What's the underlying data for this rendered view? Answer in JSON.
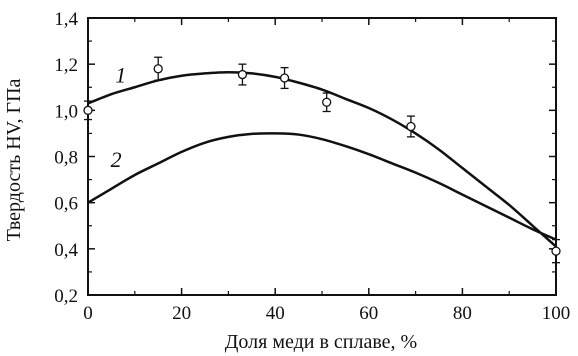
{
  "chart_data": {
    "type": "scatter",
    "xlabel": "Доля меди в сплаве, %",
    "ylabel": "Твердость HV, ГПа",
    "xlim": [
      0,
      100
    ],
    "ylim": [
      0.2,
      1.4
    ],
    "x_ticks": [
      0,
      20,
      40,
      60,
      80,
      100
    ],
    "x_tick_labels": [
      "0",
      "20",
      "40",
      "60",
      "80",
      "100"
    ],
    "y_ticks": [
      0.2,
      0.4,
      0.6,
      0.8,
      1.0,
      1.2,
      1.4
    ],
    "y_tick_labels": [
      "0,2",
      "0,4",
      "0,6",
      "0,8",
      "1,0",
      "1,2",
      "1,4"
    ],
    "grid": false,
    "colors": {
      "ink": "#111111",
      "background": "#ffffff"
    },
    "series": [
      {
        "name": "1",
        "marker": "open-circle",
        "points": [
          {
            "x": 0,
            "y": 1.0,
            "err": 0.04
          },
          {
            "x": 15,
            "y": 1.18,
            "err": 0.05
          },
          {
            "x": 33,
            "y": 1.155,
            "err": 0.045
          },
          {
            "x": 42,
            "y": 1.14,
            "err": 0.045
          },
          {
            "x": 51,
            "y": 1.035,
            "err": 0.04
          },
          {
            "x": 69,
            "y": 0.93,
            "err": 0.045
          },
          {
            "x": 100,
            "y": 0.39,
            "err": 0.05
          }
        ],
        "fit": [
          {
            "x": 0,
            "y": 1.03
          },
          {
            "x": 5,
            "y": 1.07
          },
          {
            "x": 10,
            "y": 1.1
          },
          {
            "x": 15,
            "y": 1.13
          },
          {
            "x": 20,
            "y": 1.15
          },
          {
            "x": 25,
            "y": 1.16
          },
          {
            "x": 30,
            "y": 1.165
          },
          {
            "x": 35,
            "y": 1.16
          },
          {
            "x": 40,
            "y": 1.145
          },
          {
            "x": 45,
            "y": 1.12
          },
          {
            "x": 50,
            "y": 1.09
          },
          {
            "x": 55,
            "y": 1.05
          },
          {
            "x": 60,
            "y": 1.01
          },
          {
            "x": 65,
            "y": 0.96
          },
          {
            "x": 70,
            "y": 0.9
          },
          {
            "x": 75,
            "y": 0.83
          },
          {
            "x": 80,
            "y": 0.75
          },
          {
            "x": 85,
            "y": 0.67
          },
          {
            "x": 90,
            "y": 0.59
          },
          {
            "x": 95,
            "y": 0.5
          },
          {
            "x": 100,
            "y": 0.41
          }
        ]
      },
      {
        "name": "2",
        "fit": [
          {
            "x": 0,
            "y": 0.6
          },
          {
            "x": 5,
            "y": 0.66
          },
          {
            "x": 10,
            "y": 0.72
          },
          {
            "x": 15,
            "y": 0.77
          },
          {
            "x": 20,
            "y": 0.82
          },
          {
            "x": 25,
            "y": 0.86
          },
          {
            "x": 30,
            "y": 0.885
          },
          {
            "x": 35,
            "y": 0.898
          },
          {
            "x": 40,
            "y": 0.9
          },
          {
            "x": 45,
            "y": 0.895
          },
          {
            "x": 50,
            "y": 0.875
          },
          {
            "x": 55,
            "y": 0.845
          },
          {
            "x": 60,
            "y": 0.81
          },
          {
            "x": 65,
            "y": 0.77
          },
          {
            "x": 70,
            "y": 0.73
          },
          {
            "x": 75,
            "y": 0.685
          },
          {
            "x": 80,
            "y": 0.635
          },
          {
            "x": 85,
            "y": 0.585
          },
          {
            "x": 90,
            "y": 0.535
          },
          {
            "x": 95,
            "y": 0.485
          },
          {
            "x": 100,
            "y": 0.44
          }
        ]
      }
    ],
    "curve_labels": [
      {
        "text": "1",
        "x": 7,
        "y": 1.12
      },
      {
        "text": "2",
        "x": 6,
        "y": 0.755
      }
    ]
  }
}
